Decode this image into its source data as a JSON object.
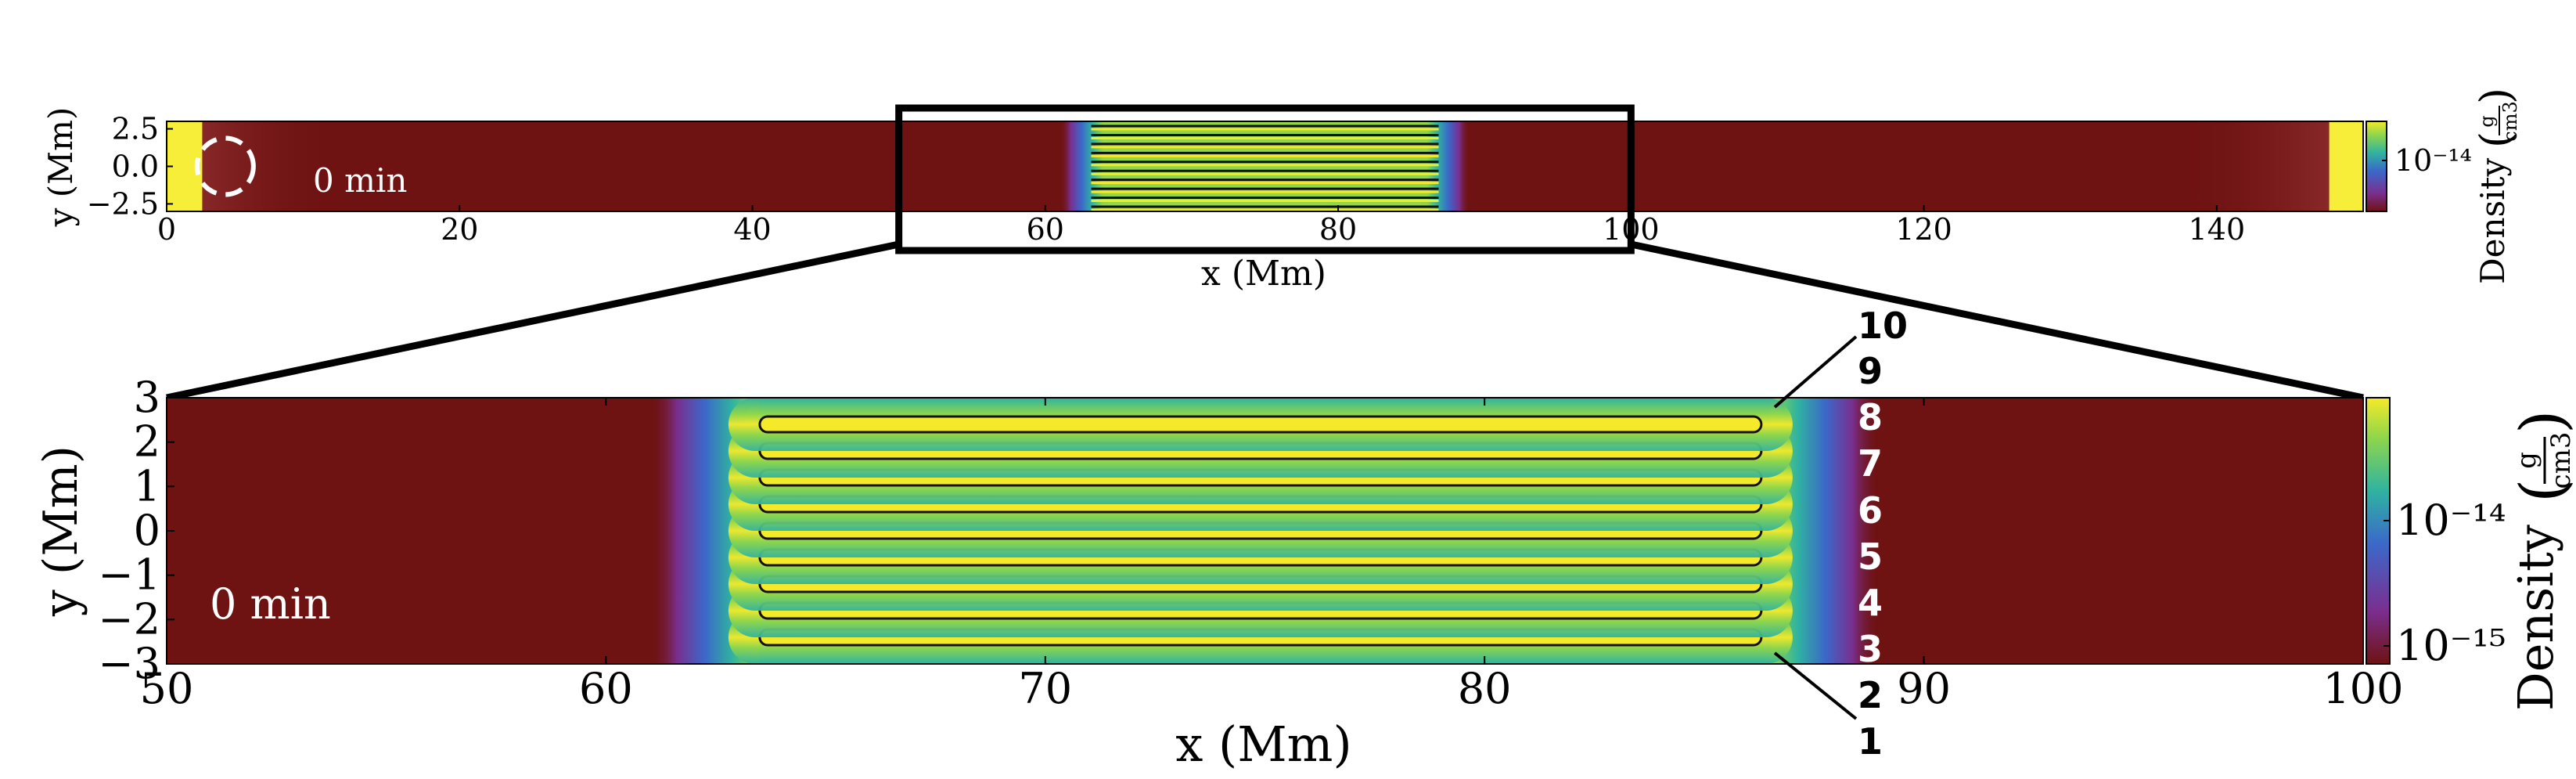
{
  "colors": {
    "background_dark": "#6f1212",
    "slab_yellow": "#f5ea2a",
    "slab_green": "#8fd64b",
    "slab_teal": "#2fb3a0",
    "slab_blue": "#3b68c9",
    "slab_purple": "#7a2f8f",
    "contour": "#111111",
    "overview_wall": "#f7ee3a",
    "zoom_box": "#000000"
  },
  "chart_data": [
    {
      "type": "heatmap",
      "panel": "overview",
      "title": "",
      "xlabel": "x  (Mm)",
      "ylabel": "y  (Mm)",
      "xlim": [
        0,
        150
      ],
      "ylim": [
        -3,
        3
      ],
      "xticks": [
        0,
        20,
        40,
        60,
        80,
        100,
        120,
        140
      ],
      "xtick_labels": [
        "0",
        "20",
        "40",
        "60",
        "80",
        "100",
        "120",
        "140"
      ],
      "yticks": [
        2.5,
        0.0,
        -2.5
      ],
      "ytick_labels": [
        "2.5",
        "0.0",
        "−2.5"
      ],
      "time_label": "0 min",
      "quantity_label": "Density",
      "unit_numerator": "g",
      "unit_denominator": "cm3",
      "colorbar_ticks": [
        "10^-14"
      ],
      "colorbar_tick_labels": [
        "10⁻¹⁴"
      ],
      "slab_region_x": [
        61,
        89
      ],
      "threads_count": 10,
      "walls_x": [
        [
          0,
          2
        ],
        [
          148,
          150
        ]
      ],
      "circle_center": [
        4,
        0
      ],
      "zoom_box_x": [
        50,
        100
      ]
    },
    {
      "type": "heatmap",
      "panel": "zoom",
      "title": "",
      "xlabel": "x  (Mm)",
      "ylabel": "y  (Mm)",
      "xlim": [
        50,
        100
      ],
      "ylim": [
        -3,
        3
      ],
      "xticks": [
        50,
        60,
        70,
        80,
        90,
        100
      ],
      "xtick_labels": [
        "50",
        "60",
        "70",
        "80",
        "90",
        "100"
      ],
      "yticks": [
        3,
        2,
        1,
        0,
        -1,
        -2,
        -3
      ],
      "ytick_labels": [
        "3",
        "2",
        "1",
        "0",
        "−1",
        "−2",
        "−3"
      ],
      "time_label": "0 min",
      "quantity_label": "Density",
      "unit_numerator": "g",
      "unit_denominator": "cm3",
      "colorbar_ticks": [
        "10^-14",
        "10^-15"
      ],
      "colorbar_tick_labels": [
        "10⁻¹⁴",
        "10⁻¹⁵"
      ],
      "threads": [
        {
          "label": "1",
          "y_center": -2.4,
          "x_range": [
            63.5,
            86.3
          ]
        },
        {
          "label": "2",
          "y_center": -1.8,
          "x_range": [
            63.5,
            86.3
          ]
        },
        {
          "label": "3",
          "y_center": -1.2,
          "x_range": [
            63.5,
            86.3
          ]
        },
        {
          "label": "4",
          "y_center": -0.6,
          "x_range": [
            63.5,
            86.3
          ]
        },
        {
          "label": "5",
          "y_center": 0.0,
          "x_range": [
            63.5,
            86.3
          ]
        },
        {
          "label": "6",
          "y_center": 0.6,
          "x_range": [
            63.5,
            86.3
          ]
        },
        {
          "label": "7",
          "y_center": 1.2,
          "x_range": [
            63.5,
            86.3
          ]
        },
        {
          "label": "8",
          "y_center": 1.8,
          "x_range": [
            63.5,
            86.3
          ]
        },
        {
          "label": "9",
          "y_center": 2.4,
          "x_range": [
            63.5,
            86.3
          ]
        },
        {
          "label": "10",
          "y_center": 3.0,
          "x_range": [
            63.5,
            86.3
          ]
        }
      ]
    }
  ]
}
